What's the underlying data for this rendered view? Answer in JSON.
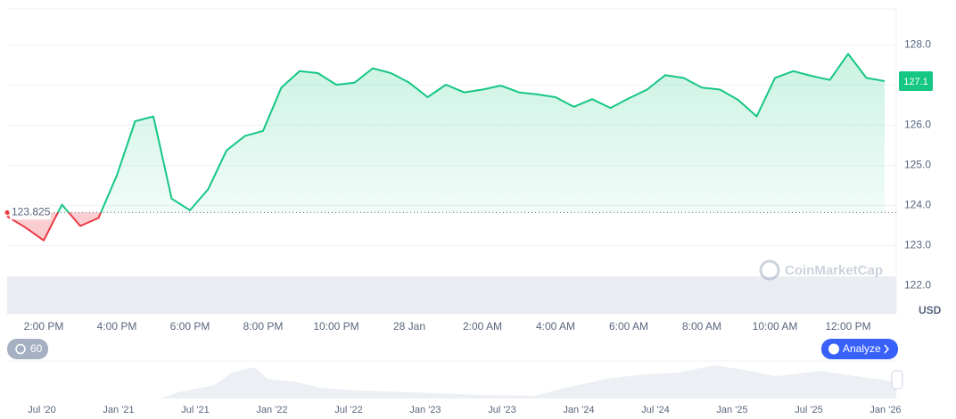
{
  "chart_data": {
    "type": "area",
    "categories": [
      null,
      null,
      "2:00 PM",
      null,
      null,
      null,
      "4:00 PM",
      null,
      null,
      null,
      "6:00 PM",
      null,
      null,
      null,
      "8:00 PM",
      null,
      null,
      null,
      "10:00 PM",
      null,
      null,
      null,
      "28 Jan",
      null,
      null,
      null,
      "2:00 AM",
      null,
      null,
      null,
      "4:00 AM",
      null,
      null,
      null,
      "6:00 AM",
      null,
      null,
      null,
      "8:00 AM",
      null,
      null,
      null,
      "10:00 AM",
      null,
      null,
      null,
      "12:00 PM",
      null,
      null
    ],
    "series": [
      {
        "color_up": "#16c784",
        "color_down": "#ea3943",
        "values": [
          123.73,
          123.45,
          123.13,
          124.02,
          123.49,
          123.69,
          124.75,
          126.1,
          126.22,
          124.17,
          123.88,
          124.41,
          125.37,
          125.73,
          125.86,
          126.94,
          127.35,
          127.3,
          127.01,
          127.06,
          127.42,
          127.3,
          127.06,
          126.7,
          127.01,
          126.82,
          126.89,
          126.99,
          126.82,
          126.77,
          126.7,
          126.46,
          126.65,
          126.43,
          126.67,
          126.89,
          127.25,
          127.18,
          126.94,
          126.89,
          126.63,
          126.22,
          127.18,
          127.35,
          127.23,
          127.13,
          127.78,
          127.18,
          127.1
        ]
      }
    ],
    "baseline": 123.825,
    "current_price": 127.1,
    "ylim": [
      121.3,
      128.9
    ],
    "yticks": [
      {
        "value": 122,
        "label": "122.0"
      },
      {
        "value": 123,
        "label": "123.0"
      },
      {
        "value": 124,
        "label": "124.0"
      },
      {
        "value": 125,
        "label": "125.0"
      },
      {
        "value": 126,
        "label": "126.0"
      },
      {
        "value": 127,
        "label": "127.0"
      },
      {
        "value": 128,
        "label": "128.0"
      }
    ],
    "grid": true,
    "currency": "USD",
    "watermark": "CoinMarketCap"
  },
  "controls": {
    "interval": "60",
    "analyze": "Analyze"
  },
  "navigator": {
    "labels": [
      "Jul '20",
      "Jan '21",
      "Jul '21",
      "Jan '22",
      "Jul '22",
      "Jan '23",
      "Jul '23",
      "Jan '24",
      "Jul '24",
      "Jan '25",
      "Jul '25",
      "Jan '26"
    ]
  }
}
